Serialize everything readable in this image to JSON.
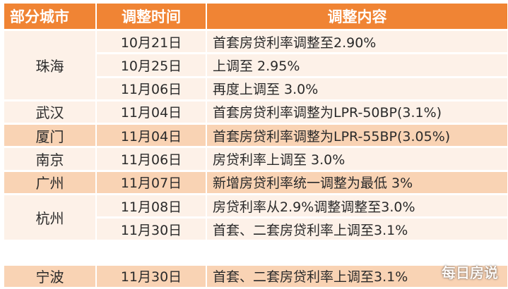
{
  "headers": {
    "city": "部分城市",
    "time": "调整时间",
    "content": "调整内容"
  },
  "cities": [
    "珠海",
    "武汉",
    "厦门",
    "南京",
    "广州",
    "杭州",
    "宁波"
  ],
  "rows": [
    {
      "date": "10月21日",
      "content": "首套房贷利率调整至2.90%"
    },
    {
      "date": "10月25日",
      "content": "上调至 2.95%"
    },
    {
      "date": "11月06日",
      "content": "再度上调至 3.0%"
    },
    {
      "date": "11月04日",
      "content": "首套房贷利率调整为LPR-50BP(3.1%)"
    },
    {
      "date": "11月04日",
      "content": "首套房贷利率调整为LPR-55BP(3.05%)"
    },
    {
      "date": "11月06日",
      "content": "房贷利率上调至 3.0%"
    },
    {
      "date": "11月07日",
      "content": "新增房贷利率统一调整为最低 3%"
    },
    {
      "date": "11月08日",
      "content": "房贷利率从2.9%调整调整至3.0%"
    },
    {
      "date": "11月30日",
      "content": "首套、二套房贷利率上调至3.1%"
    },
    {
      "date": "11月30日",
      "content": "首套、二套房贷利率上调至3.1%"
    }
  ],
  "watermark": "每日房说",
  "colors": {
    "header": "#f08434",
    "light": "#fdf1e8",
    "dark": "#f9d3b4"
  }
}
